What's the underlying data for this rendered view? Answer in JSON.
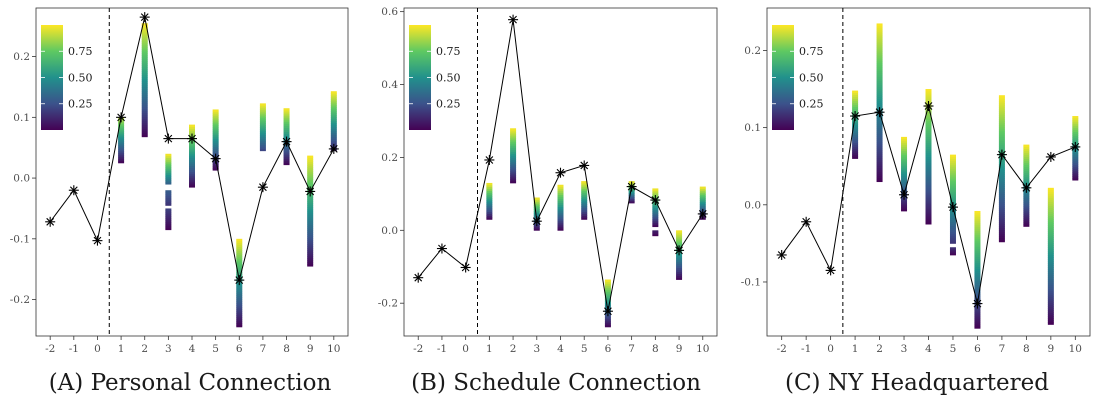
{
  "figure": {
    "colorbar": {
      "labels": [
        "0.75",
        "0.50",
        "0.25"
      ],
      "values": [
        0.75,
        0.5,
        0.25
      ],
      "colormap": [
        "#440154",
        "#3b528b",
        "#21918c",
        "#5ec962",
        "#fde725"
      ]
    }
  },
  "chart_data": [
    {
      "type": "line",
      "caption": "(A) Personal Connection",
      "x": [
        -2,
        -1,
        0,
        1,
        2,
        3,
        4,
        5,
        6,
        7,
        8,
        9,
        10
      ],
      "xticks": [
        "-2",
        "-1",
        "0",
        "1",
        "2",
        "3",
        "4",
        "5",
        "6",
        "7",
        "8",
        "9",
        "10"
      ],
      "yticks": [
        "-0.2",
        "-0.1",
        "0.0",
        "0.1",
        "0.2"
      ],
      "ytick_values": [
        -0.2,
        -0.1,
        0.0,
        0.1,
        0.2
      ],
      "ylim": [
        -0.26,
        0.28
      ],
      "xlim": [
        -2.6,
        10.6
      ],
      "vline_x": 0.5,
      "series": [
        {
          "values": [
            -0.072,
            -0.02,
            -0.103,
            0.1,
            0.265,
            0.065,
            0.065,
            0.032,
            -0.168,
            -0.015,
            0.06,
            -0.022,
            0.048
          ]
        }
      ],
      "bands": [
        {
          "x": 1,
          "segments": [
            [
              0.025,
              0.1,
              0.0,
              0.9
            ]
          ]
        },
        {
          "x": 2,
          "segments": [
            [
              0.068,
              0.255,
              0.0,
              1.0
            ]
          ]
        },
        {
          "x": 3,
          "segments": [
            [
              -0.085,
              -0.05,
              0.0,
              0.2
            ],
            [
              -0.045,
              -0.02,
              0.15,
              0.3
            ],
            [
              -0.01,
              0.04,
              0.3,
              1.0
            ]
          ]
        },
        {
          "x": 4,
          "segments": [
            [
              -0.015,
              0.088,
              0.0,
              1.0
            ]
          ]
        },
        {
          "x": 5,
          "segments": [
            [
              0.013,
              0.113,
              0.0,
              1.0
            ]
          ]
        },
        {
          "x": 6,
          "segments": [
            [
              -0.245,
              -0.1,
              0.0,
              1.0
            ]
          ]
        },
        {
          "x": 7,
          "segments": [
            [
              0.045,
              0.123,
              0.2,
              1.0
            ]
          ]
        },
        {
          "x": 8,
          "segments": [
            [
              0.022,
              0.115,
              0.0,
              1.0
            ]
          ]
        },
        {
          "x": 9,
          "segments": [
            [
              -0.145,
              0.037,
              0.0,
              1.0
            ]
          ]
        },
        {
          "x": 10,
          "segments": [
            [
              0.045,
              0.143,
              0.1,
              1.0
            ]
          ]
        }
      ]
    },
    {
      "type": "line",
      "caption": "(B) Schedule Connection",
      "x": [
        -2,
        -1,
        0,
        1,
        2,
        3,
        4,
        5,
        6,
        7,
        8,
        9,
        10
      ],
      "xticks": [
        "-2",
        "-1",
        "0",
        "1",
        "2",
        "3",
        "4",
        "5",
        "6",
        "7",
        "8",
        "9",
        "10"
      ],
      "yticks": [
        "-0.2",
        "0.0",
        "0.2",
        "0.4",
        "0.6"
      ],
      "ytick_values": [
        -0.2,
        0.0,
        0.2,
        0.4,
        0.6
      ],
      "ylim": [
        -0.29,
        0.61
      ],
      "xlim": [
        -2.6,
        10.6
      ],
      "vline_x": 0.5,
      "series": [
        {
          "values": [
            -0.13,
            -0.05,
            -0.102,
            0.193,
            0.578,
            0.025,
            0.158,
            0.178,
            -0.222,
            0.12,
            0.083,
            -0.055,
            0.045
          ]
        }
      ],
      "bands": [
        {
          "x": 1,
          "segments": [
            [
              0.03,
              0.13,
              0.0,
              1.0
            ]
          ]
        },
        {
          "x": 2,
          "segments": [
            [
              0.13,
              0.28,
              0.0,
              1.0
            ]
          ]
        },
        {
          "x": 3,
          "segments": [
            [
              0.0,
              0.09,
              0.0,
              1.0
            ]
          ]
        },
        {
          "x": 4,
          "segments": [
            [
              0.0,
              0.125,
              0.0,
              1.0
            ]
          ]
        },
        {
          "x": 5,
          "segments": [
            [
              0.03,
              0.135,
              0.0,
              1.0
            ]
          ]
        },
        {
          "x": 6,
          "segments": [
            [
              -0.265,
              -0.135,
              0.0,
              1.0
            ]
          ]
        },
        {
          "x": 7,
          "segments": [
            [
              0.075,
              0.135,
              0.0,
              1.0
            ]
          ]
        },
        {
          "x": 8,
          "segments": [
            [
              -0.015,
              0.0,
              0.0,
              0.1
            ],
            [
              0.01,
              0.115,
              0.0,
              1.0
            ]
          ]
        },
        {
          "x": 9,
          "segments": [
            [
              -0.135,
              0.0,
              0.0,
              1.0
            ]
          ]
        },
        {
          "x": 10,
          "segments": [
            [
              0.03,
              0.12,
              0.0,
              1.0
            ]
          ]
        }
      ]
    },
    {
      "type": "line",
      "caption": "(C) NY Headquartered",
      "x": [
        -2,
        -1,
        0,
        1,
        2,
        3,
        4,
        5,
        6,
        7,
        8,
        9,
        10
      ],
      "xticks": [
        "-2",
        "-1",
        "0",
        "1",
        "2",
        "3",
        "4",
        "5",
        "6",
        "7",
        "8",
        "9",
        "10"
      ],
      "yticks": [
        "-0.1",
        "0.0",
        "0.1",
        "0.2"
      ],
      "ytick_values": [
        -0.1,
        0.0,
        0.1,
        0.2
      ],
      "ylim": [
        -0.17,
        0.255
      ],
      "xlim": [
        -2.6,
        10.6
      ],
      "vline_x": 0.5,
      "series": [
        {
          "values": [
            -0.065,
            -0.022,
            -0.085,
            0.115,
            0.12,
            0.013,
            0.128,
            -0.003,
            -0.128,
            0.065,
            0.022,
            0.062,
            0.075
          ]
        }
      ],
      "bands": [
        {
          "x": 1,
          "segments": [
            [
              0.06,
              0.148,
              0.0,
              1.0
            ]
          ]
        },
        {
          "x": 2,
          "segments": [
            [
              0.03,
              0.235,
              0.0,
              1.0
            ]
          ]
        },
        {
          "x": 3,
          "segments": [
            [
              -0.008,
              0.088,
              0.0,
              1.0
            ]
          ]
        },
        {
          "x": 4,
          "segments": [
            [
              -0.025,
              0.15,
              0.0,
              1.0
            ]
          ]
        },
        {
          "x": 5,
          "segments": [
            [
              -0.065,
              -0.055,
              0.0,
              0.15
            ],
            [
              -0.05,
              0.065,
              0.15,
              1.0
            ]
          ]
        },
        {
          "x": 6,
          "segments": [
            [
              -0.16,
              -0.008,
              0.0,
              1.0
            ]
          ]
        },
        {
          "x": 7,
          "segments": [
            [
              -0.048,
              0.142,
              0.0,
              1.0
            ]
          ]
        },
        {
          "x": 8,
          "segments": [
            [
              -0.028,
              0.078,
              0.0,
              1.0
            ]
          ]
        },
        {
          "x": 9,
          "segments": [
            [
              -0.155,
              0.022,
              0.0,
              1.0
            ]
          ]
        },
        {
          "x": 10,
          "segments": [
            [
              0.032,
              0.115,
              0.0,
              1.0
            ]
          ]
        }
      ]
    }
  ]
}
